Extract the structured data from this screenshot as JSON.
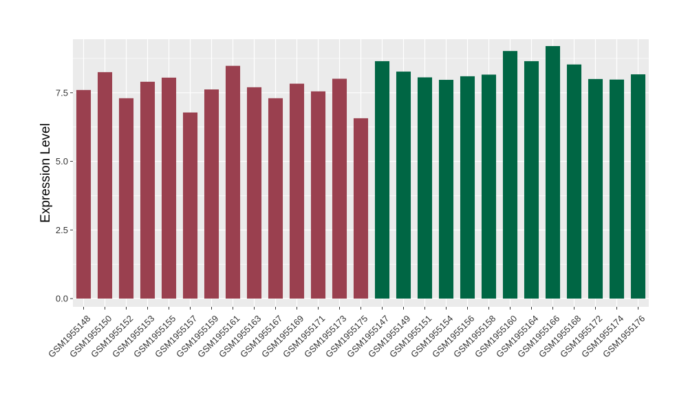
{
  "chart_data": {
    "type": "bar",
    "title": "",
    "xlabel": "",
    "ylabel": "Expression Level",
    "ylim": [
      -0.3,
      9.45
    ],
    "yticks": [
      0.0,
      2.5,
      5.0,
      7.5
    ],
    "ytick_labels": [
      "0.0",
      "2.5",
      "5.0",
      "7.5"
    ],
    "grid": true,
    "legend": "none",
    "colors": {
      "group_1": "#9a404f",
      "group_2": "#006644",
      "panel_bg": "#ebebeb",
      "grid": "#ffffff"
    },
    "categories": [
      "GSM1955148",
      "GSM1955150",
      "GSM1955152",
      "GSM1955153",
      "GSM1955155",
      "GSM1955157",
      "GSM1955159",
      "GSM1955161",
      "GSM1955163",
      "GSM1955167",
      "GSM1955169",
      "GSM1955171",
      "GSM1955173",
      "GSM1955175",
      "GSM1955147",
      "GSM1955149",
      "GSM1955151",
      "GSM1955154",
      "GSM1955156",
      "GSM1955158",
      "GSM1955160",
      "GSM1955164",
      "GSM1955166",
      "GSM1955168",
      "GSM1955172",
      "GSM1955174",
      "GSM1955176"
    ],
    "values": [
      7.6,
      8.25,
      7.3,
      7.9,
      8.05,
      6.78,
      7.62,
      8.48,
      7.7,
      7.3,
      7.83,
      7.55,
      8.01,
      6.57,
      8.65,
      8.27,
      8.06,
      7.97,
      8.1,
      8.16,
      9.02,
      8.65,
      9.2,
      8.53,
      8.0,
      7.98,
      8.17
    ],
    "groups": [
      0,
      0,
      0,
      0,
      0,
      0,
      0,
      0,
      0,
      0,
      0,
      0,
      0,
      0,
      1,
      1,
      1,
      1,
      1,
      1,
      1,
      1,
      1,
      1,
      1,
      1,
      1
    ]
  }
}
